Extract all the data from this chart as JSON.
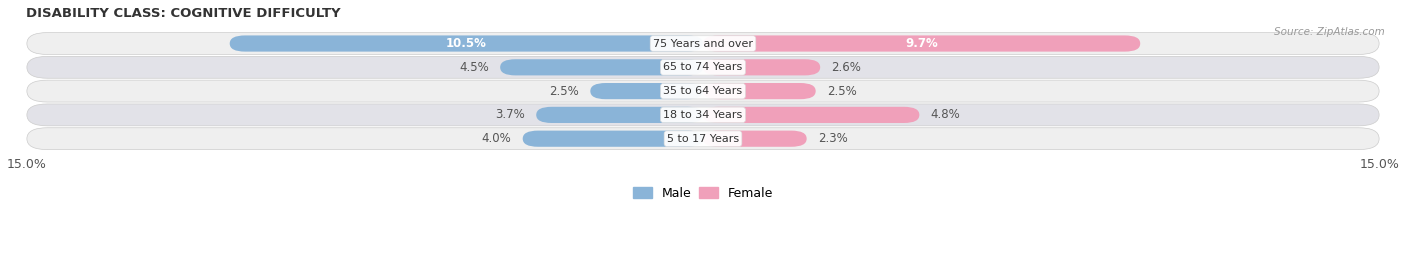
{
  "title": "DISABILITY CLASS: COGNITIVE DIFFICULTY",
  "source": "Source: ZipAtlas.com",
  "categories": [
    "5 to 17 Years",
    "18 to 34 Years",
    "35 to 64 Years",
    "65 to 74 Years",
    "75 Years and over"
  ],
  "male_values": [
    4.0,
    3.7,
    2.5,
    4.5,
    10.5
  ],
  "female_values": [
    2.3,
    4.8,
    2.5,
    2.6,
    9.7
  ],
  "max_value": 15.0,
  "male_color": "#8ab4d8",
  "female_color": "#f0a0ba",
  "male_label": "Male",
  "female_label": "Female",
  "row_bg_light": "#efefef",
  "row_bg_dark": "#e2e2e8",
  "inner_threshold": 5.0,
  "x_axis_label_left": "15.0%",
  "x_axis_label_right": "15.0%"
}
